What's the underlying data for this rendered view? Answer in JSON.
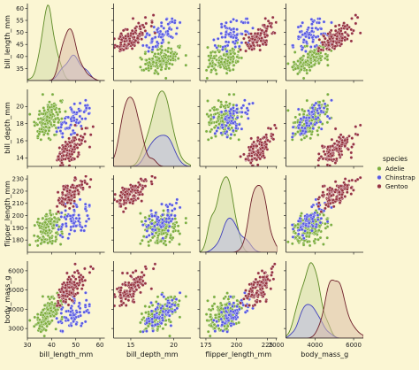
{
  "chart_data": {
    "type": "scatter",
    "title": "",
    "legend": {
      "title": "species",
      "placement": "right",
      "entries": [
        "Adelie",
        "Chinstrap",
        "Gentoo"
      ]
    },
    "variables": [
      {
        "name": "bill_length_mm",
        "range": [
          30,
          62
        ],
        "ticks": [
          30,
          40,
          50,
          60
        ],
        "row_ticks": [
          35,
          40,
          45,
          50,
          55,
          60
        ]
      },
      {
        "name": "bill_depth_mm",
        "range": [
          13,
          22
        ],
        "ticks": [
          15,
          20
        ],
        "row_ticks": [
          14,
          16,
          18,
          20
        ]
      },
      {
        "name": "flipper_length_mm",
        "range": [
          170,
          233
        ],
        "ticks": [
          175,
          200,
          225
        ],
        "row_ticks": [
          180,
          190,
          200,
          210,
          220,
          230
        ]
      },
      {
        "name": "body_mass_g",
        "range": [
          2500,
          6500
        ],
        "ticks": [
          2000,
          4000,
          6000
        ],
        "row_ticks": [
          3000,
          4000,
          5000,
          6000
        ]
      }
    ],
    "series": [
      {
        "name": "Adelie",
        "color": "#7fae3d",
        "edge": "#5d8a25",
        "fill": "#d3ddaa",
        "n": 150,
        "mean": [
          38.8,
          18.35,
          190.0,
          3700
        ],
        "sd": [
          2.66,
          1.22,
          6.5,
          458
        ],
        "corr": [
          [
            1,
            0.39,
            0.33,
            0.55
          ],
          [
            0.39,
            1,
            0.31,
            0.58
          ],
          [
            0.33,
            0.31,
            1,
            0.47
          ],
          [
            0.55,
            0.58,
            0.47,
            1
          ]
        ]
      },
      {
        "name": "Chinstrap",
        "color": "#5a5be0",
        "edge": "#3f3fbe",
        "fill": "#b9b9e6",
        "n": 68,
        "mean": [
          48.8,
          18.42,
          195.8,
          3733
        ],
        "sd": [
          3.34,
          1.14,
          7.1,
          384
        ],
        "corr": [
          [
            1,
            0.65,
            0.47,
            0.51
          ],
          [
            0.65,
            1,
            0.58,
            0.6
          ],
          [
            0.47,
            0.58,
            1,
            0.64
          ],
          [
            0.51,
            0.6,
            0.64,
            1
          ]
        ]
      },
      {
        "name": "Gentoo",
        "color": "#96343f",
        "edge": "#6e1f2a",
        "fill": "#dcc0a8",
        "n": 124,
        "mean": [
          47.5,
          14.98,
          217.2,
          5076
        ],
        "sd": [
          3.08,
          0.98,
          6.5,
          504
        ],
        "corr": [
          [
            1,
            0.64,
            0.66,
            0.67
          ],
          [
            0.64,
            1,
            0.71,
            0.72
          ],
          [
            0.66,
            0.71,
            1,
            0.7
          ],
          [
            0.67,
            0.72,
            0.7,
            1
          ]
        ]
      }
    ],
    "grid": false
  }
}
